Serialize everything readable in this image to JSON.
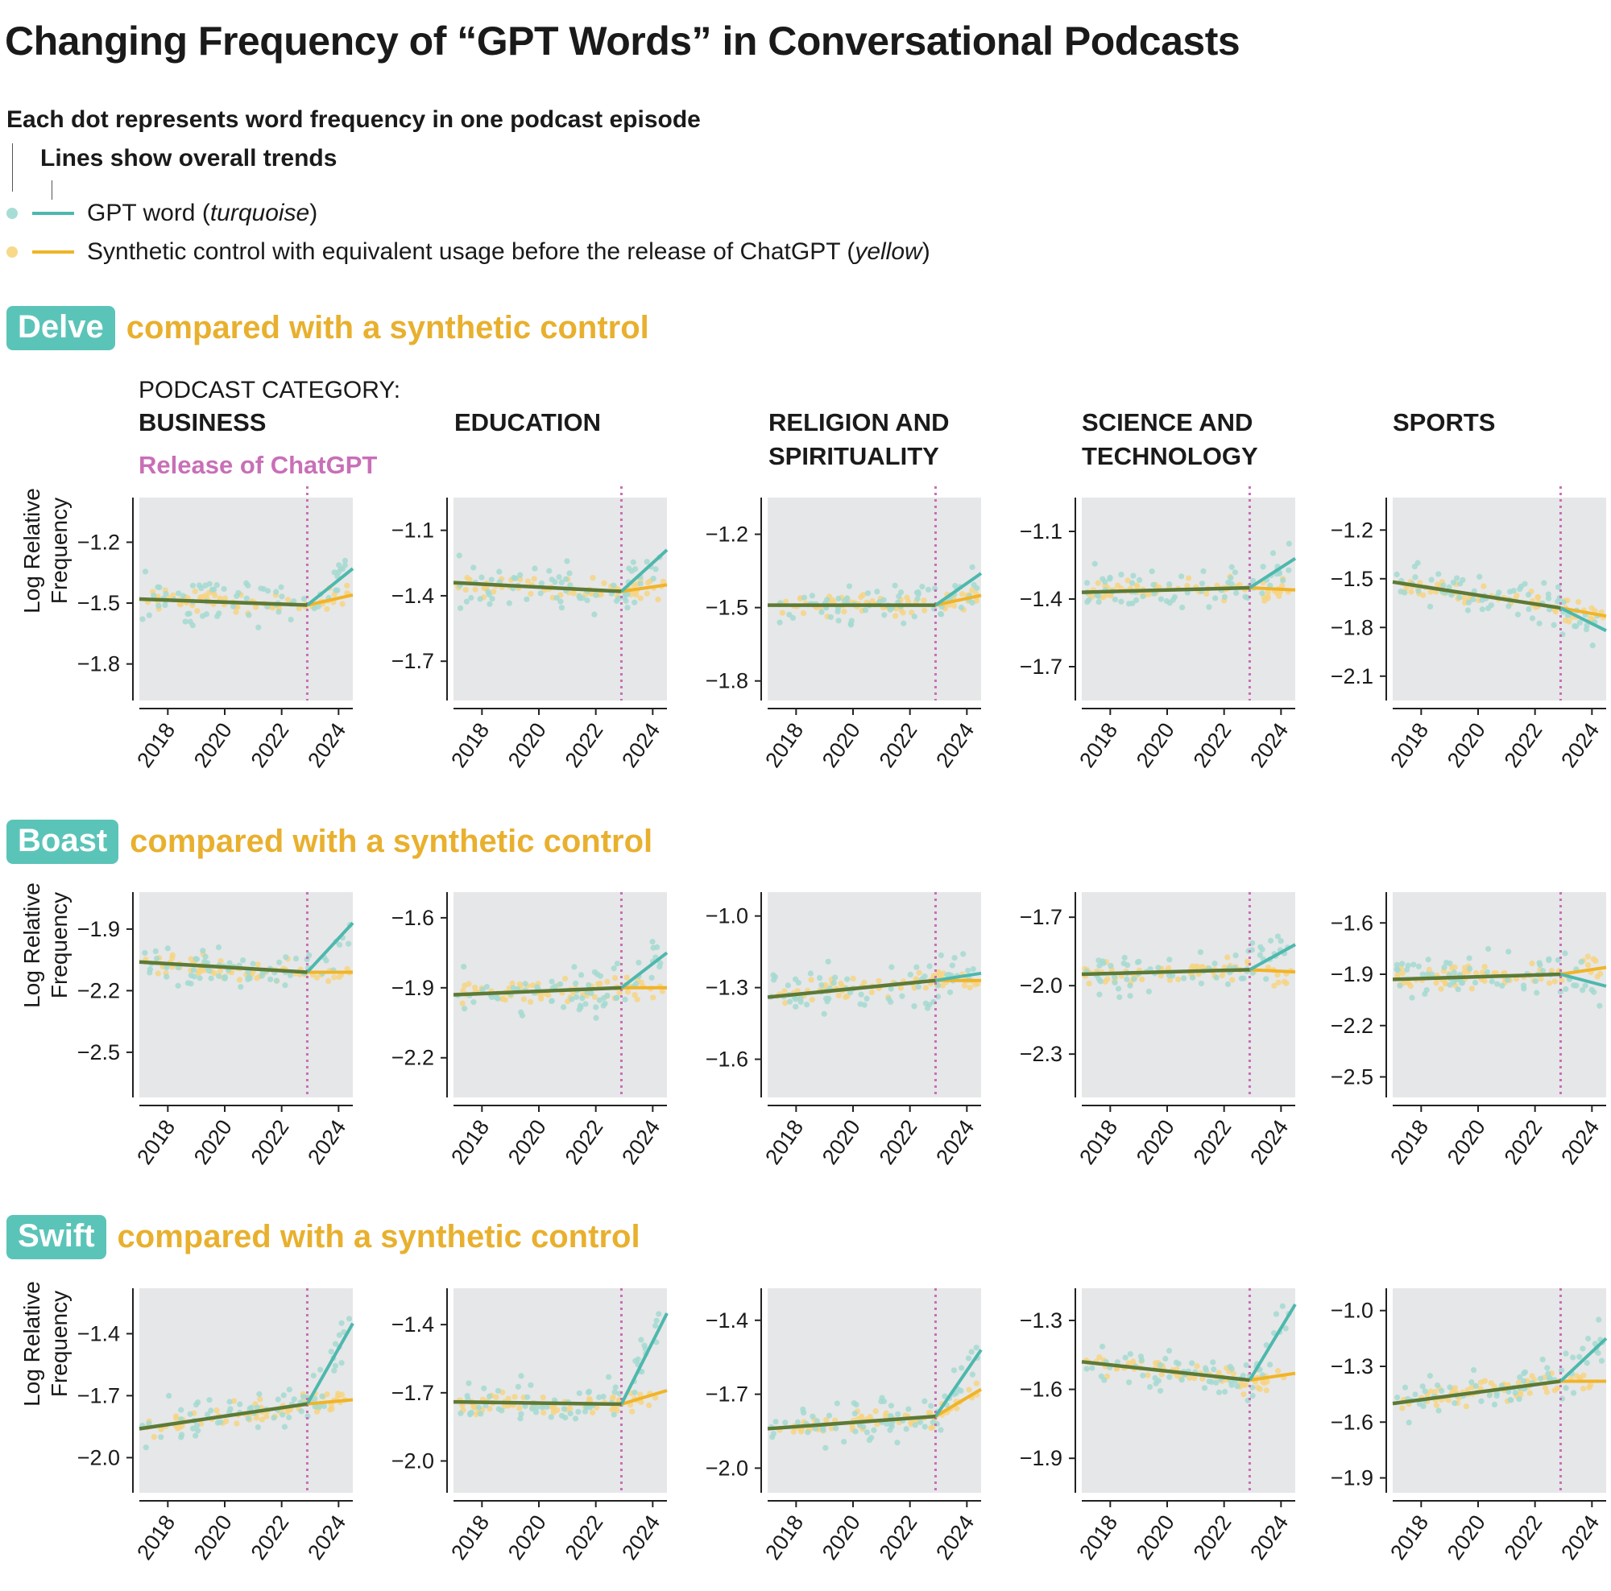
{
  "title": "Changing Frequency of “GPT Words” in Conversational Podcasts",
  "legend": {
    "dot_note": "Each dot represents word frequency in one podcast episode",
    "line_note": "Lines show overall trends",
    "gpt_label_prefix": "GPT word (",
    "gpt_label_em": "turquoise",
    "gpt_label_suffix": ")",
    "control_label_prefix": "Synthetic control with equivalent usage before the release of ChatGPT (",
    "control_label_em": "yellow",
    "control_label_suffix": ")"
  },
  "category_heading": "PODCAST CATEGORY:",
  "release_label": "Release of ChatGPT",
  "ylabel_line1": "Log Relative",
  "ylabel_line2": "Frequency",
  "compare_text": "compared with a synthetic control",
  "colors": {
    "gpt": "#4db8ad",
    "control": "#f0b428",
    "overlap": "#5d7a36",
    "release": "#c86fb7",
    "panel_bg": "#e6e7e8"
  },
  "chart_data": {
    "type": "scatter",
    "x_label_years": [
      "2018",
      "2020",
      "2022",
      "2024"
    ],
    "release_year": 2022.9,
    "categories": [
      "BUSINESS",
      "EDUCATION",
      "RELIGION AND SPIRITUALITY",
      "SCIENCE AND TECHNOLOGY",
      "SPORTS"
    ],
    "words": [
      {
        "word": "Delve",
        "panels": [
          {
            "category": "BUSINESS",
            "yticks": [
              "−1.2",
              "−1.5",
              "−1.8"
            ],
            "tick_values": [
              -1.2,
              -1.5,
              -1.8
            ],
            "ylim": [
              -1.98,
              -0.98
            ],
            "pre_start": -1.48,
            "release": -1.51,
            "gpt_end": -1.33,
            "ctrl_end": -1.46
          },
          {
            "category": "EDUCATION",
            "yticks": [
              "−1.1",
              "−1.4",
              "−1.7"
            ],
            "tick_values": [
              -1.1,
              -1.4,
              -1.7
            ],
            "ylim": [
              -1.88,
              -0.95
            ],
            "pre_start": -1.34,
            "release": -1.38,
            "gpt_end": -1.19,
            "ctrl_end": -1.35
          },
          {
            "category": "RELIGION AND SPIRITUALITY",
            "yticks": [
              "−1.2",
              "−1.5",
              "−1.8"
            ],
            "tick_values": [
              -1.2,
              -1.5,
              -1.8
            ],
            "ylim": [
              -1.88,
              -1.05
            ],
            "pre_start": -1.49,
            "release": -1.49,
            "gpt_end": -1.36,
            "ctrl_end": -1.45
          },
          {
            "category": "SCIENCE AND TECHNOLOGY",
            "yticks": [
              "−1.1",
              "−1.4",
              "−1.7"
            ],
            "tick_values": [
              -1.1,
              -1.4,
              -1.7
            ],
            "ylim": [
              -1.85,
              -0.95
            ],
            "pre_start": -1.37,
            "release": -1.35,
            "gpt_end": -1.22,
            "ctrl_end": -1.36
          },
          {
            "category": "SPORTS",
            "yticks": [
              "−1.2",
              "−1.5",
              "−1.8",
              "−2.1"
            ],
            "tick_values": [
              -1.2,
              -1.5,
              -1.8,
              -2.1
            ],
            "ylim": [
              -2.25,
              -1.0
            ],
            "pre_start": -1.52,
            "release": -1.68,
            "gpt_end": -1.82,
            "ctrl_end": -1.73
          }
        ]
      },
      {
        "word": "Boast",
        "panels": [
          {
            "category": "BUSINESS",
            "yticks": [
              "−1.9",
              "−2.2",
              "−2.5"
            ],
            "tick_values": [
              -1.9,
              -2.2,
              -2.5
            ],
            "ylim": [
              -2.72,
              -1.72
            ],
            "pre_start": -2.06,
            "release": -2.11,
            "gpt_end": -1.87,
            "ctrl_end": -2.11
          },
          {
            "category": "EDUCATION",
            "yticks": [
              "−1.6",
              "−1.9",
              "−2.2"
            ],
            "tick_values": [
              -1.6,
              -1.9,
              -2.2
            ],
            "ylim": [
              -2.37,
              -1.49
            ],
            "pre_start": -1.93,
            "release": -1.9,
            "gpt_end": -1.75,
            "ctrl_end": -1.9
          },
          {
            "category": "RELIGION AND SPIRITUALITY",
            "yticks": [
              "−1.0",
              "−1.3",
              "−1.6"
            ],
            "tick_values": [
              -1.0,
              -1.3,
              -1.6
            ],
            "ylim": [
              -1.76,
              -0.9
            ],
            "pre_start": -1.34,
            "release": -1.27,
            "gpt_end": -1.24,
            "ctrl_end": -1.27
          },
          {
            "category": "SCIENCE AND TECHNOLOGY",
            "yticks": [
              "−1.7",
              "−2.0",
              "−2.3"
            ],
            "tick_values": [
              -1.7,
              -2.0,
              -2.3
            ],
            "ylim": [
              -2.49,
              -1.59
            ],
            "pre_start": -1.95,
            "release": -1.93,
            "gpt_end": -1.82,
            "ctrl_end": -1.94
          },
          {
            "category": "SPORTS",
            "yticks": [
              "−1.6",
              "−1.9",
              "−2.2",
              "−2.5"
            ],
            "tick_values": [
              -1.6,
              -1.9,
              -2.2,
              -2.5
            ],
            "ylim": [
              -2.62,
              -1.42
            ],
            "pre_start": -1.93,
            "release": -1.9,
            "gpt_end": -1.97,
            "ctrl_end": -1.86
          }
        ]
      },
      {
        "word": "Swift",
        "panels": [
          {
            "category": "BUSINESS",
            "yticks": [
              "−1.4",
              "−1.7",
              "−2.0"
            ],
            "tick_values": [
              -1.4,
              -1.7,
              -2.0
            ],
            "ylim": [
              -2.17,
              -1.18
            ],
            "pre_start": -1.86,
            "release": -1.74,
            "gpt_end": -1.35,
            "ctrl_end": -1.72
          },
          {
            "category": "EDUCATION",
            "yticks": [
              "−1.4",
              "−1.7",
              "−2.0"
            ],
            "tick_values": [
              -1.4,
              -1.7,
              -2.0
            ],
            "ylim": [
              -2.14,
              -1.24
            ],
            "pre_start": -1.74,
            "release": -1.75,
            "gpt_end": -1.35,
            "ctrl_end": -1.69
          },
          {
            "category": "RELIGION AND SPIRITUALITY",
            "yticks": [
              "−1.4",
              "−1.7",
              "−2.0"
            ],
            "tick_values": [
              -1.4,
              -1.7,
              -2.0
            ],
            "ylim": [
              -2.1,
              -1.27
            ],
            "pre_start": -1.84,
            "release": -1.79,
            "gpt_end": -1.52,
            "ctrl_end": -1.68
          },
          {
            "category": "SCIENCE AND TECHNOLOGY",
            "yticks": [
              "−1.3",
              "−1.6",
              "−1.9"
            ],
            "tick_values": [
              -1.3,
              -1.6,
              -1.9
            ],
            "ylim": [
              -2.05,
              -1.16
            ],
            "pre_start": -1.48,
            "release": -1.56,
            "gpt_end": -1.23,
            "ctrl_end": -1.53
          },
          {
            "category": "SPORTS",
            "yticks": [
              "−1.0",
              "−1.3",
              "−1.6",
              "−1.9"
            ],
            "tick_values": [
              -1.0,
              -1.3,
              -1.6,
              -1.9
            ],
            "ylim": [
              -1.98,
              -0.88
            ],
            "pre_start": -1.5,
            "release": -1.38,
            "gpt_end": -1.15,
            "ctrl_end": -1.38
          }
        ]
      }
    ]
  }
}
